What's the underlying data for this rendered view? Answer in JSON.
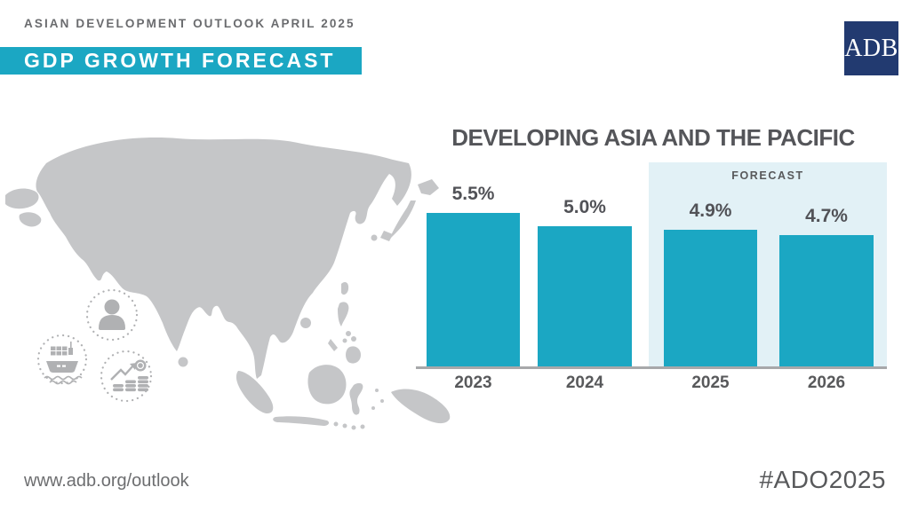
{
  "header": {
    "kicker": "ASIAN DEVELOPMENT OUTLOOK APRIL 2025",
    "title": "GDP GROWTH FORECAST",
    "logo_text": "ADB"
  },
  "colors": {
    "teal": "#1ba7c3",
    "forecast_band": "#e2f1f6",
    "logo_navy": "#223a70",
    "map_gray": "#c5c6c8",
    "icon_gray": "#b0b1b3",
    "dark_text": "#545559",
    "muted_text": "#6d6e70",
    "baseline_gray": "#a7a8aa"
  },
  "chart_data": {
    "type": "bar",
    "title": "DEVELOPING ASIA AND THE PACIFIC",
    "categories": [
      "2023",
      "2024",
      "2025",
      "2026"
    ],
    "values": [
      5.5,
      5.0,
      4.9,
      4.7
    ],
    "labels": [
      "5.5%",
      "5.0%",
      "4.9%",
      "4.7%"
    ],
    "forecast": [
      false,
      false,
      true,
      true
    ],
    "forecast_label": "FORECAST",
    "xlabel": "",
    "ylabel": "",
    "ylim": [
      0,
      6.5
    ],
    "grid": false,
    "legend": "none",
    "bar_color": "#1ba7c3",
    "forecast_band_color": "#e2f1f6"
  },
  "map": {
    "region": "Asia and the Pacific silhouette",
    "icons": [
      "person-icon",
      "cargo-ship-icon",
      "coins-growth-icon"
    ]
  },
  "footer": {
    "url": "www.adb.org/outlook",
    "hashtag": "#ADO2025"
  }
}
